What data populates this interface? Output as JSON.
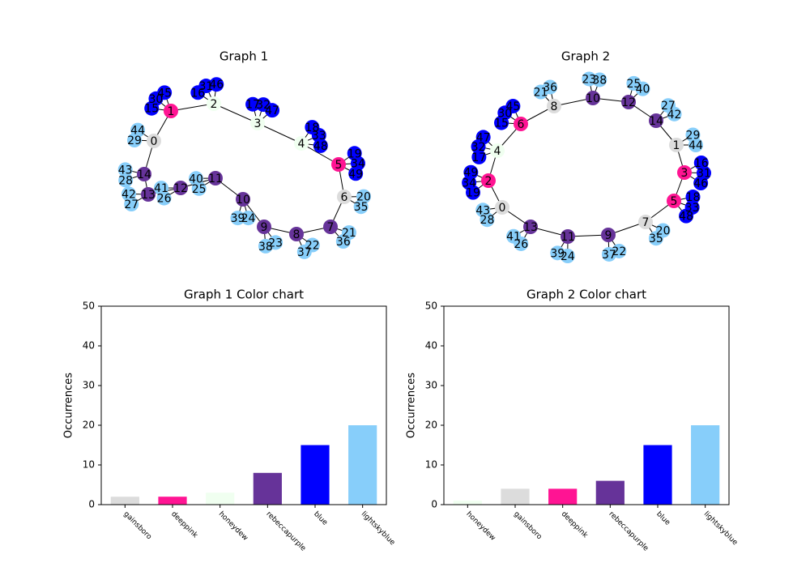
{
  "chart_data": [
    {
      "type": "network",
      "title": "Graph 1",
      "node_labels": [
        "0",
        "1",
        "2",
        "3",
        "4",
        "5",
        "6",
        "7",
        "8",
        "9",
        "10",
        "11",
        "12",
        "13",
        "14",
        "15",
        "16",
        "17",
        "18",
        "19",
        "20",
        "21",
        "22",
        "23",
        "24",
        "25",
        "26",
        "27",
        "28",
        "29",
        "30",
        "31",
        "32",
        "33",
        "34",
        "35",
        "36",
        "37",
        "38",
        "39",
        "40",
        "41",
        "42",
        "43",
        "44",
        "45",
        "46",
        "47",
        "48",
        "49"
      ],
      "node_colors": [
        "gainsboro",
        "deeppink",
        "honeydew",
        "honeydew",
        "honeydew",
        "deeppink",
        "gainsboro",
        "rebeccapurple",
        "rebeccapurple",
        "rebeccapurple",
        "rebeccapurple",
        "rebeccapurple",
        "rebeccapurple",
        "rebeccapurple",
        "rebeccapurple",
        "blue",
        "blue",
        "blue",
        "blue",
        "blue",
        "lightskyblue",
        "lightskyblue",
        "lightskyblue",
        "lightskyblue",
        "lightskyblue",
        "lightskyblue",
        "lightskyblue",
        "lightskyblue",
        "lightskyblue",
        "lightskyblue",
        "blue",
        "blue",
        "blue",
        "blue",
        "blue",
        "lightskyblue",
        "lightskyblue",
        "lightskyblue",
        "lightskyblue",
        "lightskyblue",
        "lightskyblue",
        "lightskyblue",
        "lightskyblue",
        "lightskyblue",
        "lightskyblue",
        "blue",
        "blue",
        "blue",
        "blue",
        "blue"
      ],
      "edges": [
        [
          0,
          1
        ],
        [
          1,
          2
        ],
        [
          2,
          3
        ],
        [
          3,
          4
        ],
        [
          4,
          5
        ],
        [
          5,
          6
        ],
        [
          6,
          7
        ],
        [
          7,
          8
        ],
        [
          8,
          9
        ],
        [
          9,
          10
        ],
        [
          10,
          11
        ],
        [
          11,
          12
        ],
        [
          12,
          13
        ],
        [
          13,
          14
        ],
        [
          14,
          0
        ],
        [
          1,
          15
        ],
        [
          1,
          30
        ],
        [
          1,
          45
        ],
        [
          2,
          16
        ],
        [
          2,
          31
        ],
        [
          2,
          46
        ],
        [
          3,
          17
        ],
        [
          3,
          32
        ],
        [
          3,
          47
        ],
        [
          4,
          18
        ],
        [
          4,
          33
        ],
        [
          4,
          48
        ],
        [
          5,
          19
        ],
        [
          5,
          34
        ],
        [
          5,
          49
        ],
        [
          6,
          20
        ],
        [
          6,
          35
        ],
        [
          7,
          21
        ],
        [
          7,
          36
        ],
        [
          8,
          22
        ],
        [
          8,
          37
        ],
        [
          9,
          23
        ],
        [
          9,
          38
        ],
        [
          10,
          24
        ],
        [
          10,
          39
        ],
        [
          11,
          25
        ],
        [
          11,
          40
        ],
        [
          12,
          26
        ],
        [
          12,
          41
        ],
        [
          13,
          27
        ],
        [
          13,
          42
        ],
        [
          14,
          28
        ],
        [
          14,
          43
        ],
        [
          0,
          29
        ],
        [
          0,
          44
        ]
      ]
    },
    {
      "type": "network",
      "title": "Graph 2",
      "node_labels": [
        "0",
        "1",
        "2",
        "3",
        "4",
        "5",
        "6",
        "7",
        "8",
        "9",
        "10",
        "11",
        "12",
        "13",
        "14",
        "15",
        "16",
        "17",
        "18",
        "19",
        "20",
        "21",
        "22",
        "23",
        "24",
        "25",
        "26",
        "27",
        "28",
        "29",
        "30",
        "31",
        "32",
        "33",
        "34",
        "35",
        "36",
        "37",
        "38",
        "39",
        "40",
        "41",
        "42",
        "43",
        "44",
        "45",
        "46",
        "47",
        "48",
        "49"
      ],
      "node_colors": [
        "gainsboro",
        "gainsboro",
        "deeppink",
        "deeppink",
        "honeydew",
        "deeppink",
        "deeppink",
        "gainsboro",
        "gainsboro",
        "rebeccapurple",
        "rebeccapurple",
        "rebeccapurple",
        "rebeccapurple",
        "rebeccapurple",
        "rebeccapurple",
        "blue",
        "blue",
        "blue",
        "blue",
        "blue",
        "lightskyblue",
        "lightskyblue",
        "lightskyblue",
        "lightskyblue",
        "lightskyblue",
        "lightskyblue",
        "lightskyblue",
        "lightskyblue",
        "lightskyblue",
        "lightskyblue",
        "blue",
        "blue",
        "blue",
        "blue",
        "blue",
        "lightskyblue",
        "lightskyblue",
        "lightskyblue",
        "lightskyblue",
        "lightskyblue",
        "lightskyblue",
        "lightskyblue",
        "lightskyblue",
        "lightskyblue",
        "lightskyblue",
        "blue",
        "blue",
        "blue",
        "blue",
        "blue"
      ],
      "edges": [
        [
          0,
          13
        ],
        [
          13,
          11
        ],
        [
          11,
          9
        ],
        [
          9,
          7
        ],
        [
          7,
          5
        ],
        [
          5,
          3
        ],
        [
          3,
          1
        ],
        [
          1,
          14
        ],
        [
          14,
          12
        ],
        [
          12,
          10
        ],
        [
          10,
          8
        ],
        [
          8,
          6
        ],
        [
          6,
          4
        ],
        [
          4,
          2
        ],
        [
          2,
          0
        ],
        [
          6,
          15
        ],
        [
          6,
          30
        ],
        [
          6,
          45
        ],
        [
          3,
          16
        ],
        [
          3,
          31
        ],
        [
          3,
          46
        ],
        [
          4,
          17
        ],
        [
          4,
          32
        ],
        [
          4,
          47
        ],
        [
          5,
          18
        ],
        [
          5,
          33
        ],
        [
          5,
          48
        ],
        [
          2,
          19
        ],
        [
          2,
          34
        ],
        [
          2,
          49
        ],
        [
          7,
          20
        ],
        [
          7,
          35
        ],
        [
          8,
          21
        ],
        [
          8,
          36
        ],
        [
          9,
          22
        ],
        [
          9,
          37
        ],
        [
          10,
          23
        ],
        [
          10,
          38
        ],
        [
          11,
          24
        ],
        [
          11,
          39
        ],
        [
          12,
          25
        ],
        [
          12,
          40
        ],
        [
          13,
          26
        ],
        [
          13,
          41
        ],
        [
          14,
          27
        ],
        [
          14,
          42
        ],
        [
          0,
          28
        ],
        [
          0,
          43
        ],
        [
          1,
          29
        ],
        [
          1,
          44
        ]
      ]
    },
    {
      "type": "bar",
      "title": "Graph 1 Color chart",
      "ylabel": "Occurrences",
      "categories": [
        "gainsboro",
        "deeppink",
        "honeydew",
        "rebeccapurple",
        "blue",
        "lightskyblue"
      ],
      "values": [
        2,
        2,
        3,
        8,
        15,
        20
      ],
      "colors": [
        "gainsboro",
        "deeppink",
        "honeydew",
        "rebeccapurple",
        "blue",
        "lightskyblue"
      ],
      "ylim": [
        0,
        50
      ],
      "yticks": [
        0,
        10,
        20,
        30,
        40,
        50
      ]
    },
    {
      "type": "bar",
      "title": "Graph 2 Color chart",
      "ylabel": "Occurrences",
      "categories": [
        "honeydew",
        "gainsboro",
        "deeppink",
        "rebeccapurple",
        "blue",
        "lightskyblue"
      ],
      "values": [
        1,
        4,
        4,
        6,
        15,
        20
      ],
      "colors": [
        "honeydew",
        "gainsboro",
        "deeppink",
        "rebeccapurple",
        "blue",
        "lightskyblue"
      ],
      "ylim": [
        0,
        50
      ],
      "yticks": [
        0,
        10,
        20,
        30,
        40,
        50
      ]
    }
  ]
}
